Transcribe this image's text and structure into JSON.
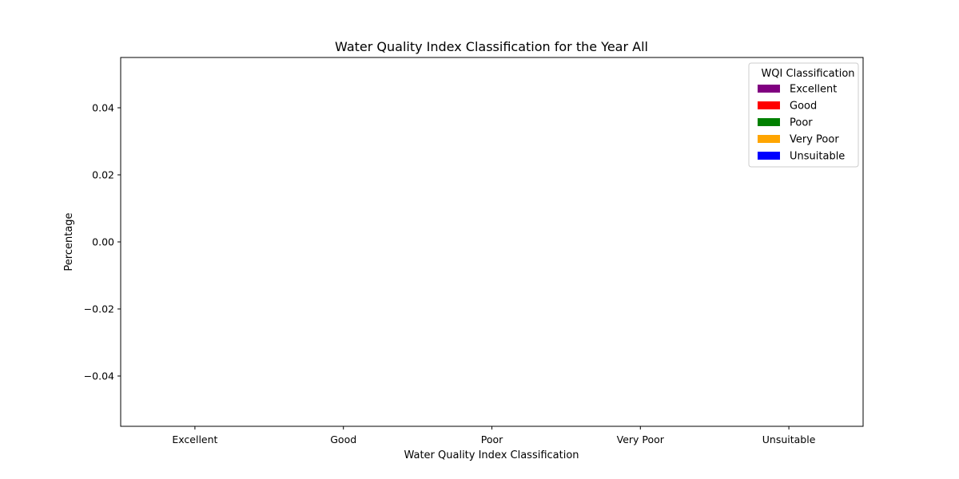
{
  "chart_data": {
    "type": "bar",
    "title": "Water Quality Index Classification for the Year All",
    "xlabel": "Water Quality Index Classification",
    "ylabel": "Percentage",
    "categories": [
      "Excellent",
      "Good",
      "Poor",
      "Very Poor",
      "Unsuitable"
    ],
    "values": [
      0,
      0,
      0,
      0,
      0
    ],
    "colors": [
      "#800080",
      "#ff0000",
      "#008000",
      "#ffa500",
      "#0000ff"
    ],
    "ylim": [
      -0.055,
      0.055
    ],
    "yticks": [
      0.04,
      0.02,
      0.0,
      -0.02,
      -0.04
    ],
    "ytick_labels": [
      "0.04",
      "0.02",
      "0.00",
      "−0.02",
      "−0.04"
    ],
    "grid": false,
    "legend": {
      "title": "WQI Classification",
      "placement": "top-right",
      "entries": [
        "Excellent",
        "Good",
        "Poor",
        "Very Poor",
        "Unsuitable"
      ]
    }
  }
}
